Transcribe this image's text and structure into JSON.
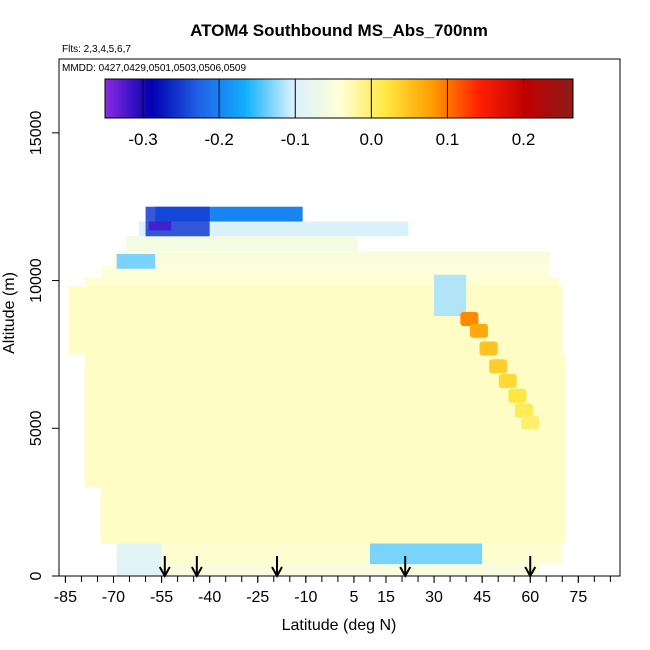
{
  "chart_data": {
    "type": "heatmap",
    "title": "ATOM4 Southbound MS_Abs_700nm",
    "subtitle_flights": "Flts: 2,3,4,5,6,7",
    "subtitle_dates": "MMDD: 0427,0429,0501,0503,0506,0509",
    "xlabel": "Latitude (deg N)",
    "ylabel": "Altitude (m)",
    "xlim": [
      -87,
      88
    ],
    "ylim": [
      0,
      17500
    ],
    "x_ticks": [
      -85,
      -70,
      -55,
      -40,
      -25,
      -10,
      5,
      15,
      30,
      45,
      60,
      75
    ],
    "x_tick_labels": [
      "-85",
      "-70",
      "-55",
      "-40",
      "-25",
      "-10",
      "5",
      "15",
      "30",
      "45",
      "60",
      "75"
    ],
    "y_ticks": [
      0,
      5000,
      10000,
      15000
    ],
    "y_tick_labels": [
      "0",
      "5000",
      "10000",
      "15000"
    ],
    "colorbar": {
      "min": -0.35,
      "max": 0.265,
      "ticks": [
        -0.3,
        -0.2,
        -0.1,
        0.0,
        0.1,
        0.2
      ],
      "tick_labels": [
        "-0.3",
        "-0.2",
        "-0.1",
        "0.0",
        "0.1",
        "0.2"
      ],
      "colors": [
        "#8a2be2",
        "#0000b0",
        "#2060e6",
        "#10b0ff",
        "#d8f0ff",
        "#ffffd8",
        "#ffe840",
        "#ff9c00",
        "#ff2000",
        "#c00000",
        "#8b1c1c"
      ]
    },
    "flight_arrows_lat": [
      -54,
      -44,
      -19,
      21,
      60
    ],
    "field": {
      "background_value": -0.03,
      "background_edge_value": -0.045,
      "rows": [
        {
          "alt": [
            0,
            400
          ],
          "lat": [
            -69,
            63
          ],
          "value": -0.05
        },
        {
          "alt": [
            400,
            1100
          ],
          "lat": [
            -69,
            70
          ],
          "value": -0.04
        },
        {
          "alt": [
            1100,
            3000
          ],
          "lat": [
            -74,
            71
          ],
          "value": -0.035
        },
        {
          "alt": [
            3000,
            7500
          ],
          "lat": [
            -79,
            71
          ],
          "value": -0.035
        },
        {
          "alt": [
            7500,
            9800
          ],
          "lat": [
            -84,
            70
          ],
          "value": -0.035
        },
        {
          "alt": [
            9800,
            10100
          ],
          "lat": [
            -79,
            69
          ],
          "value": -0.04
        },
        {
          "alt": [
            10100,
            10500
          ],
          "lat": [
            -74,
            66
          ],
          "value": -0.045
        },
        {
          "alt": [
            10500,
            11000
          ],
          "lat": [
            -70,
            66
          ],
          "value": -0.05
        },
        {
          "alt": [
            11000,
            11500
          ],
          "lat": [
            -66,
            6
          ],
          "value": -0.06
        },
        {
          "alt": [
            11500,
            12000
          ],
          "lat": [
            -62,
            22
          ],
          "value": -0.1
        },
        {
          "alt": [
            12000,
            12500
          ],
          "lat": [
            -57,
            -11
          ],
          "value": -0.2
        }
      ],
      "features": [
        {
          "name": "upper dark patch",
          "alt": [
            11500,
            12500
          ],
          "lat": [
            -60,
            -40
          ],
          "value": -0.25
        },
        {
          "name": "upper patch core",
          "alt": [
            11700,
            12000
          ],
          "lat": [
            -59,
            -52
          ],
          "value": -0.32
        },
        {
          "name": "low blue strip",
          "alt": [
            400,
            1100
          ],
          "lat": [
            10,
            45
          ],
          "value": -0.14
        },
        {
          "name": "upper right blue",
          "alt": [
            8800,
            10200
          ],
          "lat": [
            30,
            40
          ],
          "value": -0.12
        },
        {
          "name": "mid left blue",
          "alt": [
            10400,
            10900
          ],
          "lat": [
            -69,
            -57
          ],
          "value": -0.14
        },
        {
          "name": "low left blue",
          "alt": [
            0,
            1100
          ],
          "lat": [
            -69,
            -55
          ],
          "value": -0.1
        }
      ],
      "plume": [
        {
          "lat": 41,
          "alt": 8700,
          "value": 0.09
        },
        {
          "lat": 44,
          "alt": 8300,
          "value": 0.07
        },
        {
          "lat": 47,
          "alt": 7700,
          "value": 0.05
        },
        {
          "lat": 50,
          "alt": 7100,
          "value": 0.04
        },
        {
          "lat": 53,
          "alt": 6600,
          "value": 0.03
        },
        {
          "lat": 56,
          "alt": 6100,
          "value": 0.02
        },
        {
          "lat": 58,
          "alt": 5600,
          "value": 0.01
        },
        {
          "lat": 60,
          "alt": 5200,
          "value": 0.0
        }
      ]
    }
  }
}
